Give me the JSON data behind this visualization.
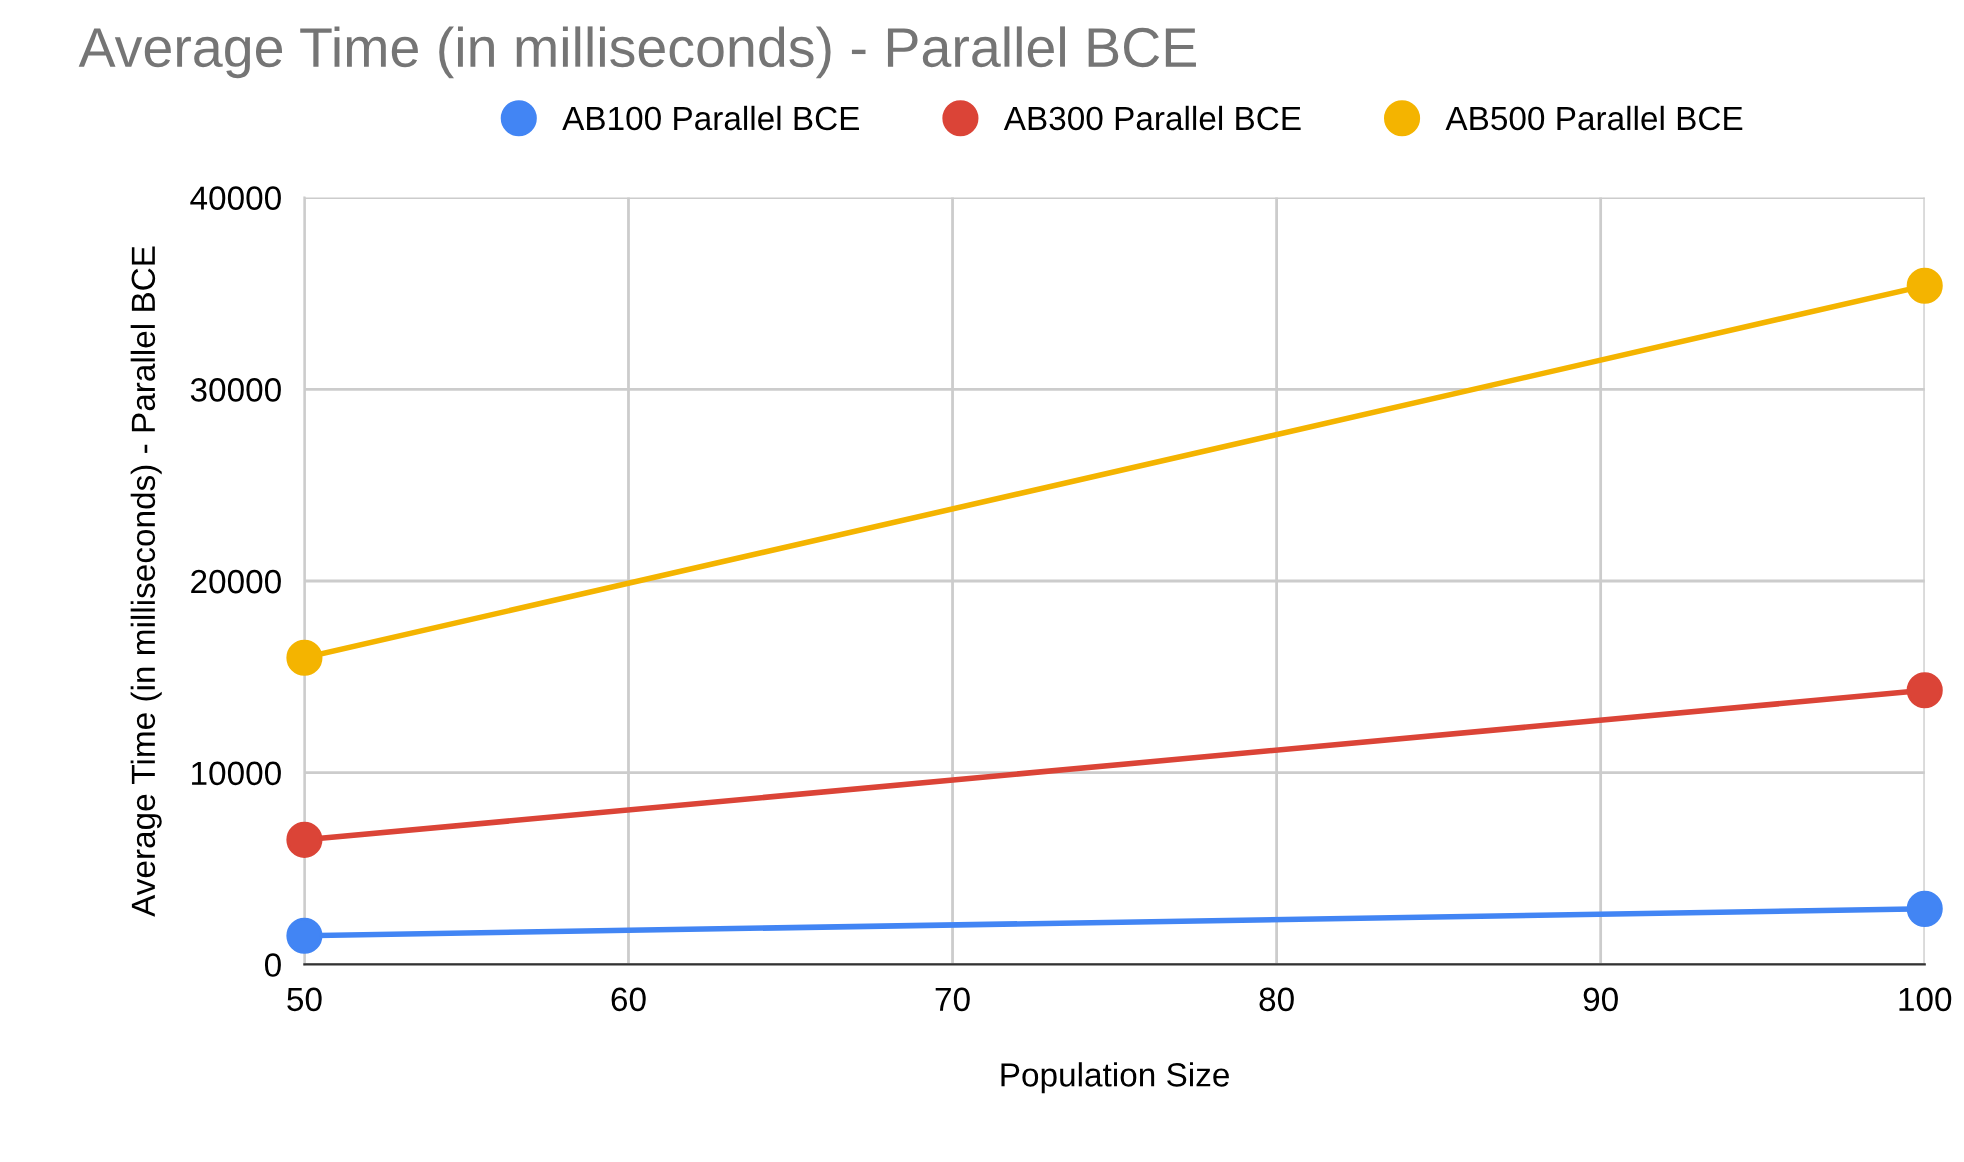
{
  "chart_data": {
    "type": "line",
    "title": "Average Time (in milliseconds) - Parallel BCE",
    "xlabel": "Population Size",
    "ylabel": "Average Time (in milliseconds) - Parallel BCE",
    "x": [
      50,
      100
    ],
    "series": [
      {
        "name": "AB100 Parallel BCE",
        "color": "#4285f4",
        "values": [
          1500,
          2900
        ]
      },
      {
        "name": "AB300 Parallel BCE",
        "color": "#db4437",
        "values": [
          6500,
          14300
        ]
      },
      {
        "name": "AB500 Parallel BCE",
        "color": "#f4b400",
        "values": [
          16000,
          35400
        ]
      }
    ],
    "xlim": [
      50,
      100
    ],
    "xticks": [
      50,
      60,
      70,
      80,
      90,
      100
    ],
    "ylim": [
      0,
      40000
    ],
    "yticks": [
      0,
      10000,
      20000,
      30000,
      40000
    ],
    "grid": true,
    "legend": "top",
    "marker": "circle",
    "line_style": "solid"
  }
}
